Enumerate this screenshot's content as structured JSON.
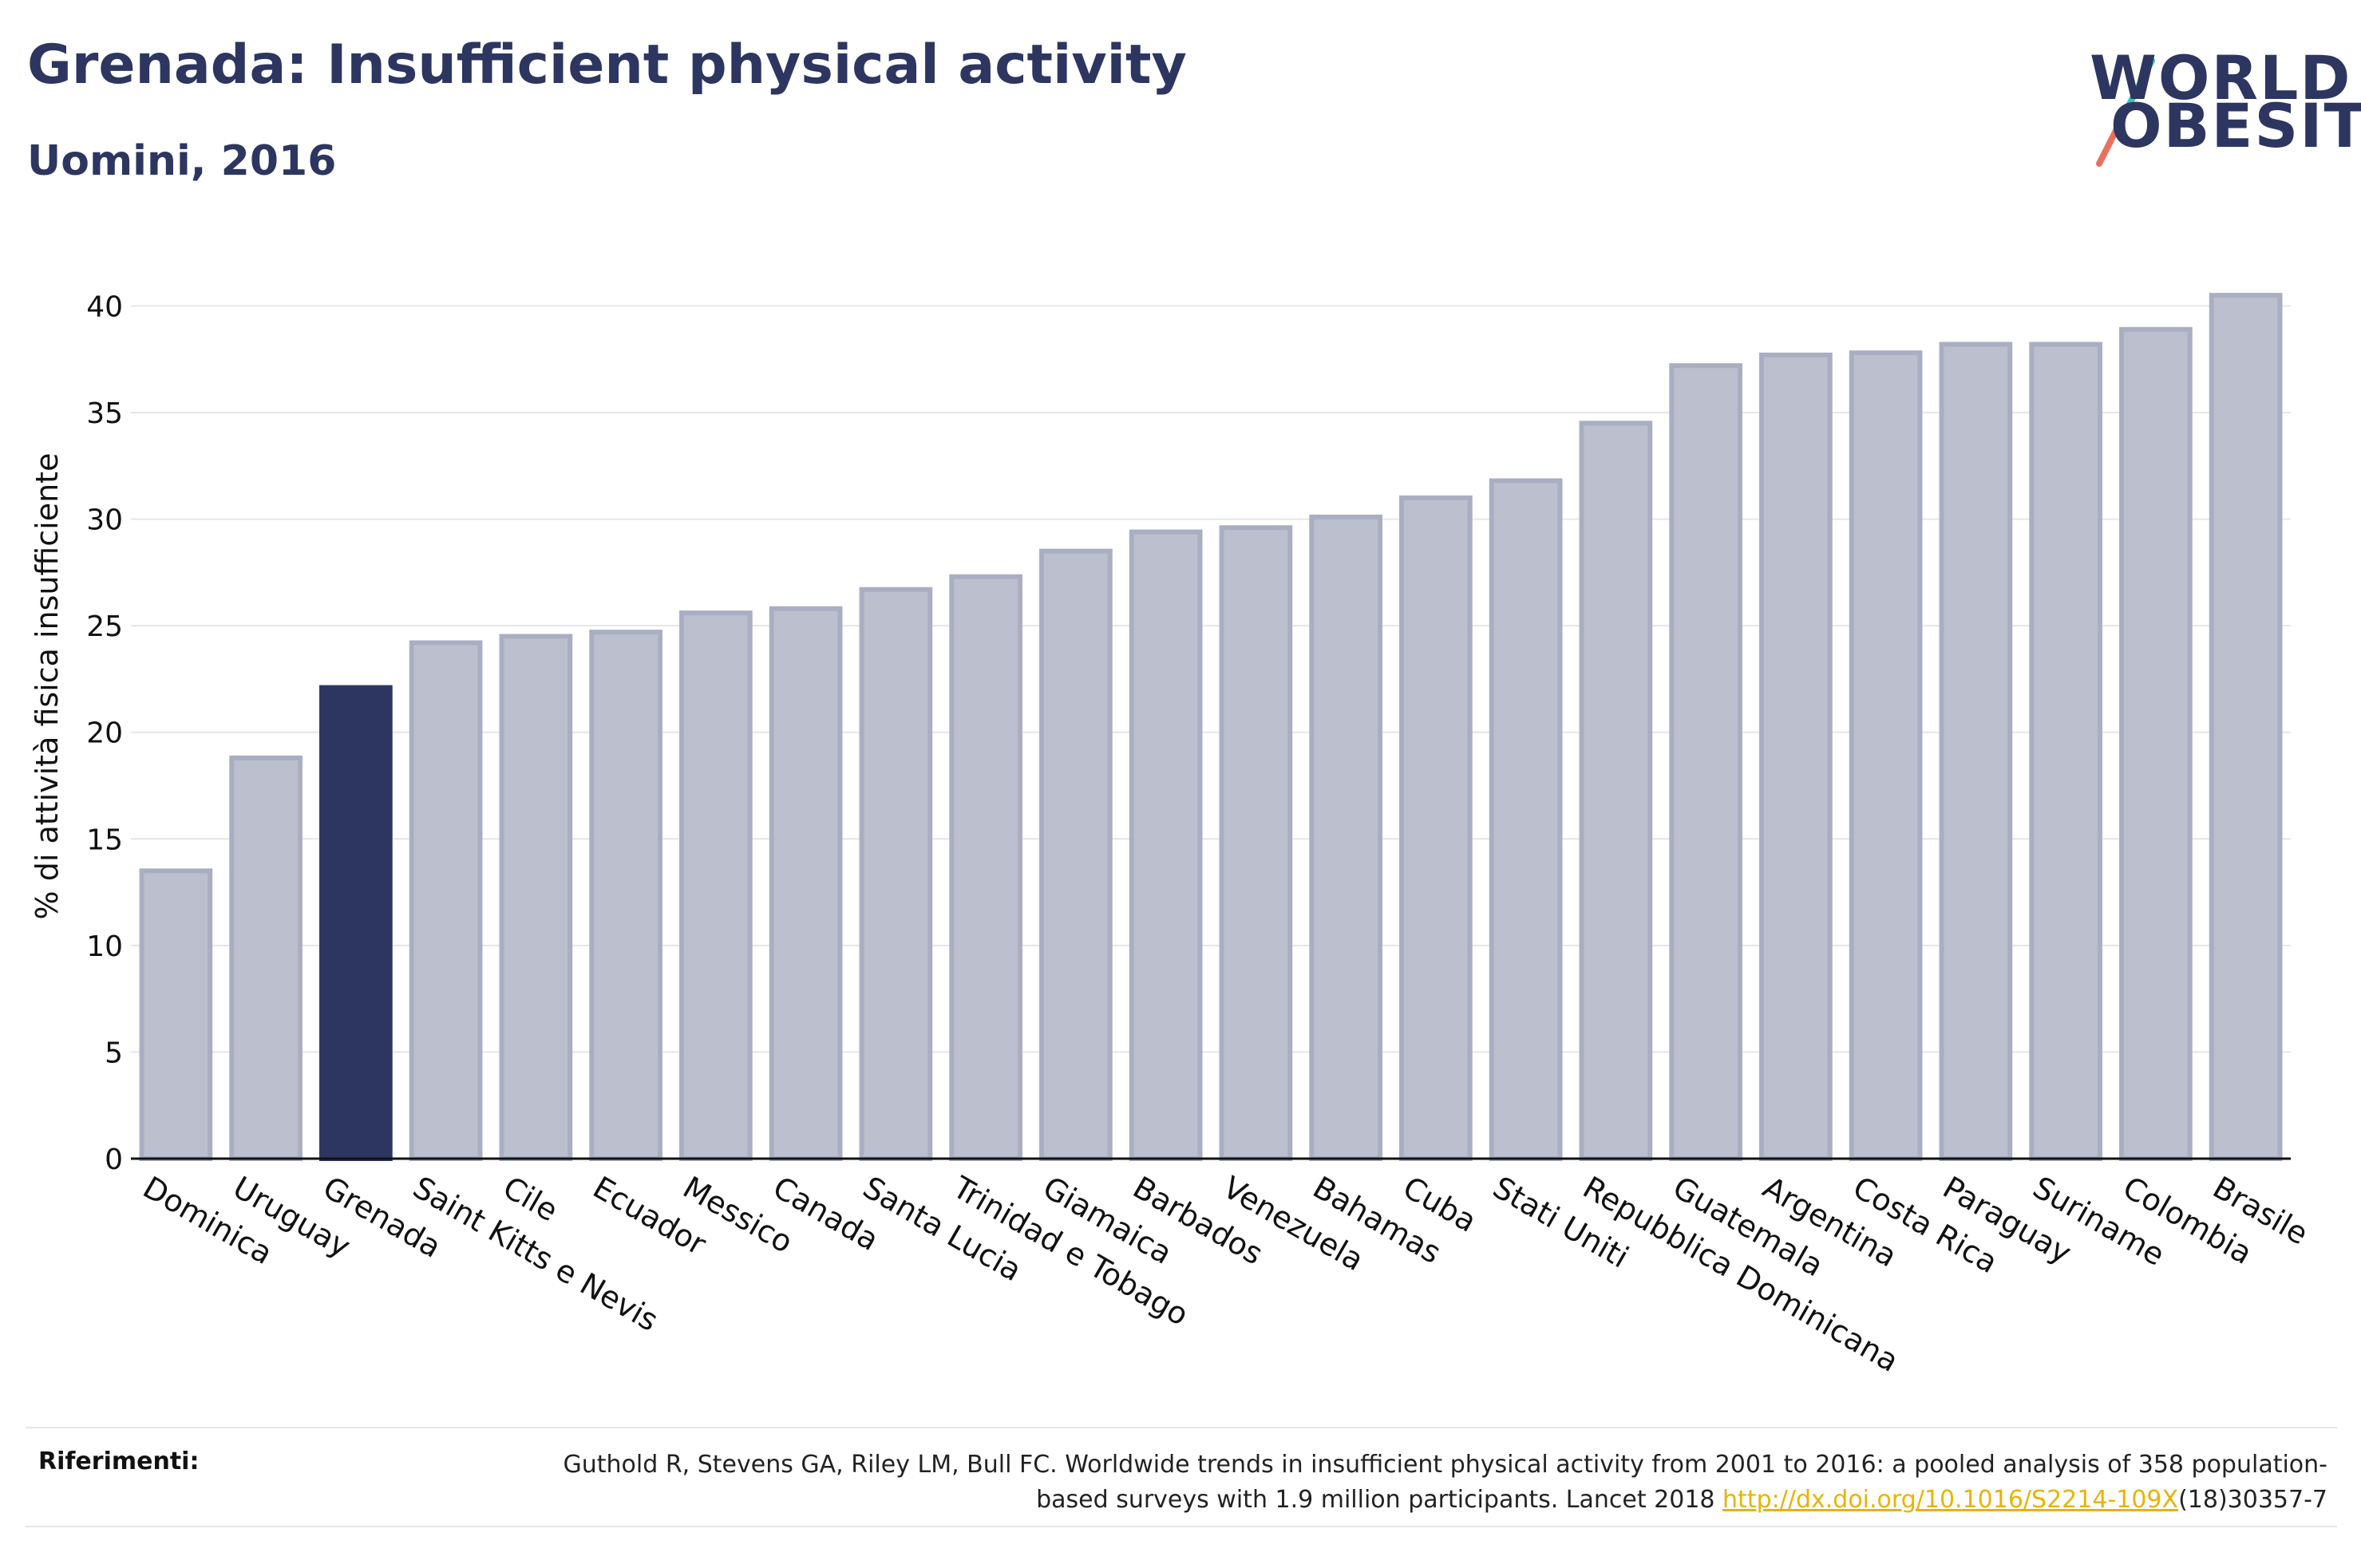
{
  "header": {
    "title": "Grenada: Insufficient physical activity",
    "subtitle": "Uomini, 2016"
  },
  "logo": {
    "line1": "WORLD",
    "line2": "OBESITY",
    "colors": {
      "text": "#2c3660",
      "slash_top": "#3cc3bd",
      "slash_bottom": "#e8705e"
    }
  },
  "colors": {
    "bar_default": "#bcc0ce",
    "bar_default_stroke": "#a9aec2",
    "bar_highlight": "#2c3660",
    "axis_text": "#111111",
    "grid": "#e6e6ea"
  },
  "chart_data": {
    "type": "bar",
    "title": "Grenada: Insufficient physical activity",
    "subtitle": "Uomini, 2016",
    "xlabel": "",
    "ylabel": "% di attività fisica insufficiente",
    "ylim": [
      0,
      42
    ],
    "yticks": [
      0,
      5,
      10,
      15,
      20,
      25,
      30,
      35,
      40
    ],
    "grid": true,
    "highlight": "Grenada",
    "categories": [
      "Dominica",
      "Uruguay",
      "Grenada",
      "Saint Kitts e Nevis",
      "Cile",
      "Ecuador",
      "Messico",
      "Canada",
      "Santa Lucia",
      "Trinidad e Tobago",
      "Giamaica",
      "Barbados",
      "Venezuela",
      "Bahamas",
      "Cuba",
      "Stati Uniti",
      "Repubblica Dominicana",
      "Guatemala",
      "Argentina",
      "Costa Rica",
      "Paraguay",
      "Suriname",
      "Colombia",
      "Brasile"
    ],
    "values": [
      13.5,
      18.8,
      22.1,
      24.2,
      24.5,
      24.7,
      25.6,
      25.8,
      26.7,
      27.3,
      28.5,
      29.4,
      29.6,
      30.1,
      31.0,
      31.8,
      34.5,
      37.2,
      37.7,
      37.8,
      38.2,
      38.2,
      38.9,
      40.5
    ]
  },
  "references": {
    "label": "Riferimenti:",
    "text_before": "Guthold R, Stevens GA, Riley LM, Bull FC. Worldwide trends in insufficient physical activity from 2001 to 2016: a pooled analysis of 358 population-based surveys with 1.9 million participants. Lancet 2018 ",
    "link_text": "http://dx.doi.org/10.1016/S2214-109X",
    "text_after": "(18)30357-7"
  }
}
